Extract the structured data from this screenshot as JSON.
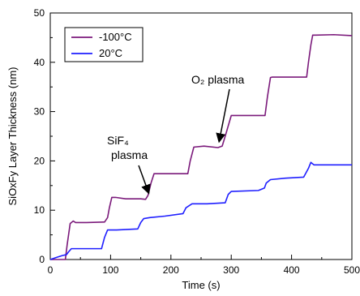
{
  "chart_data": {
    "type": "line",
    "title": "",
    "xlabel": "Time (s)",
    "ylabel": "SiOxFy Layer Thickness (nm)",
    "xlim": [
      0,
      500
    ],
    "ylim": [
      0,
      50
    ],
    "xticks": [
      0,
      100,
      200,
      300,
      400,
      500
    ],
    "yticks": [
      0,
      10,
      20,
      30,
      40,
      50
    ],
    "grid": false,
    "legend_placement": "top-left",
    "series": [
      {
        "name": "-100°C",
        "color": "#7b1a7b",
        "x": [
          0,
          25,
          28,
          33,
          38,
          42,
          60,
          90,
          95,
          98,
          102,
          108,
          125,
          150,
          158,
          162,
          167,
          172,
          200,
          228,
          232,
          238,
          255,
          278,
          285,
          290,
          300,
          330,
          356,
          360,
          365,
          368,
          390,
          425,
          428,
          432,
          435,
          440,
          470,
          500
        ],
        "y": [
          0,
          0,
          3,
          7.3,
          7.8,
          7.5,
          7.5,
          7.6,
          8.5,
          10.5,
          12.6,
          12.6,
          12.3,
          12.3,
          12.2,
          13.0,
          15.5,
          17.4,
          17.4,
          17.4,
          20.0,
          22.8,
          23.0,
          22.7,
          23.0,
          25.0,
          29.2,
          29.2,
          29.2,
          33.0,
          36.9,
          37.0,
          37.0,
          37.0,
          40.0,
          43.5,
          45.5,
          45.5,
          45.6,
          45.4
        ]
      },
      {
        "name": "20°C",
        "color": "#1f1fff",
        "x": [
          0,
          12,
          20,
          27,
          30,
          35,
          55,
          85,
          90,
          95,
          110,
          145,
          150,
          155,
          165,
          190,
          220,
          225,
          235,
          260,
          290,
          295,
          300,
          345,
          355,
          358,
          365,
          390,
          420,
          428,
          432,
          437,
          450,
          500
        ],
        "y": [
          0,
          0.5,
          0.8,
          1.0,
          1.5,
          2.2,
          2.2,
          2.2,
          4.5,
          6.0,
          6.0,
          6.2,
          7.5,
          8.3,
          8.5,
          8.8,
          9.3,
          10.5,
          11.3,
          11.3,
          11.5,
          13.2,
          13.8,
          14.0,
          14.5,
          15.5,
          16.2,
          16.5,
          16.7,
          18.5,
          19.7,
          19.2,
          19.2,
          19.2
        ]
      }
    ],
    "annotations": [
      {
        "text": "O₂ plasma",
        "target_x": 280,
        "target_y": 23.0
      },
      {
        "text_line1": "SiF₄",
        "text_line2": "plasma",
        "target_x": 163,
        "target_y": 12.4
      }
    ]
  }
}
